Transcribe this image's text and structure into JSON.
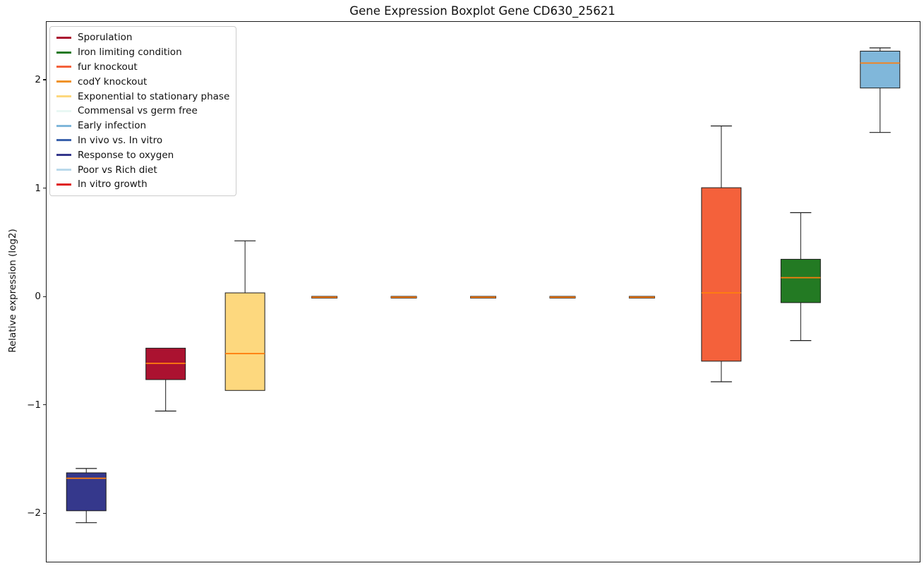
{
  "chart_data": {
    "type": "boxplot",
    "title": "Gene Expression Boxplot Gene CD630_25621",
    "ylabel": "Relative expression (log2)",
    "ylim": [
      -2.44,
      2.54
    ],
    "yticks": [
      {
        "value": -2,
        "label": "−2"
      },
      {
        "value": -1,
        "label": "−1"
      },
      {
        "value": 0,
        "label": "0"
      },
      {
        "value": 1,
        "label": "1"
      },
      {
        "value": 2,
        "label": "2"
      }
    ],
    "grid": false,
    "legend_position": "upper-left",
    "median_color": "#ff7f0e",
    "box_edge_color": "#1c1c1c",
    "series": [
      {
        "name": "Response to oxygen",
        "color": "#35388c",
        "whisker_low": -2.08,
        "q1": -1.97,
        "median": -1.67,
        "q3": -1.62,
        "whisker_high": -1.58
      },
      {
        "name": "Sporulation",
        "color": "#ab1230",
        "whisker_low": -1.05,
        "q1": -0.76,
        "median": -0.61,
        "q3": -0.47,
        "whisker_high": -0.47
      },
      {
        "name": "Exponential to stationary phase",
        "color": "#fdd87e",
        "whisker_low": -0.86,
        "q1": -0.86,
        "median": -0.52,
        "q3": 0.04,
        "whisker_high": 0.52
      },
      {
        "name": "codY knockout",
        "color": "#f0932a",
        "whisker_low": -0.01,
        "q1": -0.005,
        "median": 0.0,
        "q3": 0.005,
        "whisker_high": 0.01
      },
      {
        "name": "Commensal vs germ free",
        "color": "#e9f8f4",
        "whisker_low": -0.01,
        "q1": -0.005,
        "median": 0.0,
        "q3": 0.005,
        "whisker_high": 0.01
      },
      {
        "name": "In vivo vs. In vitro",
        "color": "#3c63ad",
        "whisker_low": -0.01,
        "q1": -0.005,
        "median": 0.0,
        "q3": 0.005,
        "whisker_high": 0.01
      },
      {
        "name": "Poor vs Rich diet",
        "color": "#bad9eb",
        "whisker_low": -0.01,
        "q1": -0.005,
        "median": 0.0,
        "q3": 0.005,
        "whisker_high": 0.01
      },
      {
        "name": "In vitro growth",
        "color": "#df1b1b",
        "whisker_low": -0.01,
        "q1": -0.005,
        "median": 0.0,
        "q3": 0.005,
        "whisker_high": 0.01
      },
      {
        "name": "fur knockout",
        "color": "#f4613b",
        "whisker_low": -0.78,
        "q1": -0.59,
        "median": 0.04,
        "q3": 1.01,
        "whisker_high": 1.58
      },
      {
        "name": "Iron limiting condition",
        "color": "#237a23",
        "whisker_low": -0.4,
        "q1": -0.05,
        "median": 0.18,
        "q3": 0.35,
        "whisker_high": 0.78
      },
      {
        "name": "Early infection",
        "color": "#80b7da",
        "whisker_low": 1.52,
        "q1": 1.93,
        "median": 2.16,
        "q3": 2.27,
        "whisker_high": 2.3
      }
    ],
    "legend": [
      {
        "label": "Sporulation",
        "color": "#ab1230"
      },
      {
        "label": "Iron limiting condition",
        "color": "#237a23"
      },
      {
        "label": "fur knockout",
        "color": "#f4613b"
      },
      {
        "label": "codY knockout",
        "color": "#f0932a"
      },
      {
        "label": "Exponential to stationary phase",
        "color": "#fdd87e"
      },
      {
        "label": "Commensal vs germ free",
        "color": "#e9f8f4"
      },
      {
        "label": "Early infection",
        "color": "#80b7da"
      },
      {
        "label": "In vivo vs. In vitro",
        "color": "#3c63ad"
      },
      {
        "label": "Response to oxygen",
        "color": "#35388c"
      },
      {
        "label": "Poor vs Rich diet",
        "color": "#bad9eb"
      },
      {
        "label": "In vitro growth",
        "color": "#df1b1b"
      }
    ]
  }
}
